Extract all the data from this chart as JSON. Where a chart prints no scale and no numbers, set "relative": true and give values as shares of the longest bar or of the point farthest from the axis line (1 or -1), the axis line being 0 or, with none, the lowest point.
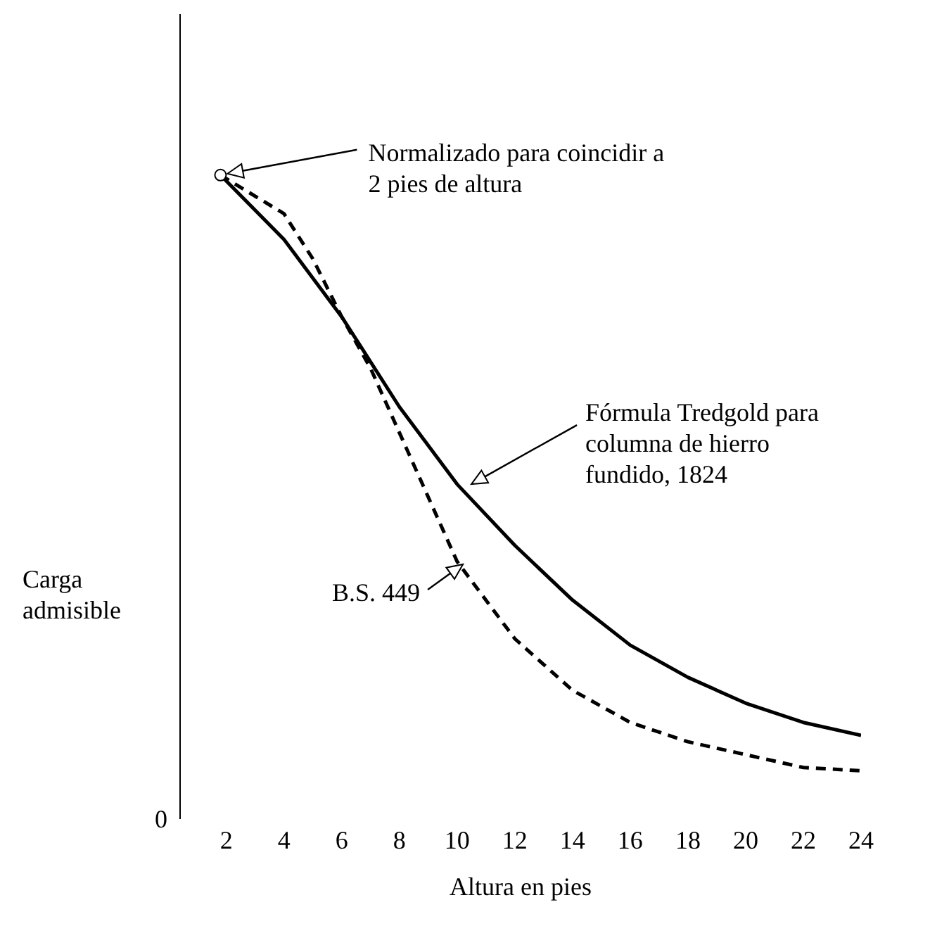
{
  "chart_data": {
    "type": "line",
    "relative": true,
    "xlabel": "Altura en pies",
    "ylabel": "Carga admisible",
    "xlim": [
      0.4,
      24
    ],
    "xticks": [
      2,
      4,
      6,
      8,
      10,
      12,
      14,
      16,
      18,
      20,
      22,
      24
    ],
    "marker": "none",
    "series": [
      {
        "name": "Fórmula Tredgold para columna de hierro fundido, 1824",
        "color": "#000000",
        "line_style": "solid",
        "x": [
          1.8,
          4,
          6,
          8,
          10,
          12,
          14,
          16,
          18,
          20,
          22,
          24
        ],
        "values": [
          1,
          0.9,
          0.78,
          0.64,
          0.52,
          0.425,
          0.34,
          0.27,
          0.22,
          0.18,
          0.15,
          0.13
        ]
      },
      {
        "name": "B.S. 449",
        "color": "#000000",
        "line_style": "dashed",
        "x": [
          1.8,
          4,
          5,
          6,
          7,
          8,
          10,
          12,
          14,
          16,
          18,
          20,
          22,
          24
        ],
        "values": [
          1,
          0.94,
          0.87,
          0.78,
          0.7,
          0.6,
          0.4,
          0.28,
          0.2,
          0.15,
          0.12,
          0.1,
          0.08,
          0.075
        ]
      }
    ],
    "annotations": [
      "Normalizado para coincidir a 2 pies de altura",
      "0"
    ]
  }
}
